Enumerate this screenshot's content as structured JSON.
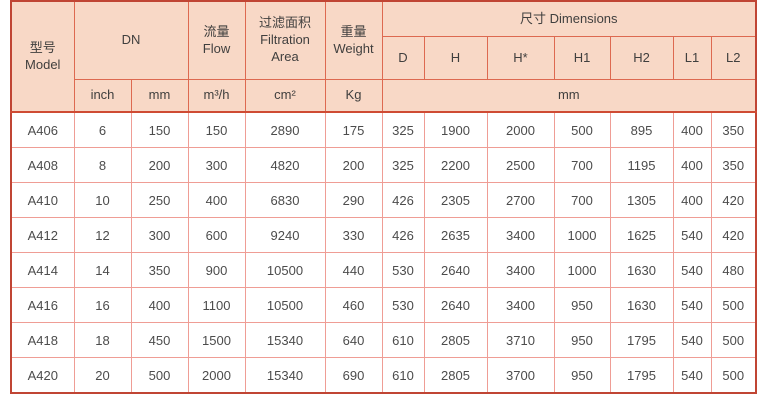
{
  "colors": {
    "header_bg": "#f8d8c6",
    "header_border": "#dd6950",
    "outer_border": "#c04534",
    "header_separator": "#cf4b33",
    "data_border": "#ef9d95",
    "header_text": "#403f3e",
    "data_text": "#4c4c4c",
    "page_bg": "#ffffff"
  },
  "table": {
    "header": {
      "model": {
        "zh": "型号",
        "en": "Model"
      },
      "dn": "DN",
      "flow": {
        "zh": "流量",
        "en": "Flow"
      },
      "filtration_area": {
        "zh": "过滤面积",
        "en_line1": "Filtration",
        "en_line2": "Area"
      },
      "weight": {
        "zh": "重量",
        "en": "Weight"
      },
      "dimensions": "尺寸 Dimensions",
      "dimension_columns": [
        "D",
        "H",
        "H*",
        "H1",
        "H2",
        "L1",
        "L2"
      ],
      "units": {
        "dn_inch": "inch",
        "dn_mm": "mm",
        "flow": "m³/h",
        "area": "cm²",
        "weight": "Kg",
        "dimensions": "mm"
      }
    },
    "rows": [
      [
        "A406",
        "6",
        "150",
        "150",
        "2890",
        "175",
        "325",
        "1900",
        "2000",
        "500",
        "895",
        "400",
        "350"
      ],
      [
        "A408",
        "8",
        "200",
        "300",
        "4820",
        "200",
        "325",
        "2200",
        "2500",
        "700",
        "1195",
        "400",
        "350"
      ],
      [
        "A410",
        "10",
        "250",
        "400",
        "6830",
        "290",
        "426",
        "2305",
        "2700",
        "700",
        "1305",
        "400",
        "420"
      ],
      [
        "A412",
        "12",
        "300",
        "600",
        "9240",
        "330",
        "426",
        "2635",
        "3400",
        "1000",
        "1625",
        "540",
        "420"
      ],
      [
        "A414",
        "14",
        "350",
        "900",
        "10500",
        "440",
        "530",
        "2640",
        "3400",
        "1000",
        "1630",
        "540",
        "480"
      ],
      [
        "A416",
        "16",
        "400",
        "1100",
        "10500",
        "460",
        "530",
        "2640",
        "3400",
        "950",
        "1630",
        "540",
        "500"
      ],
      [
        "A418",
        "18",
        "450",
        "1500",
        "15340",
        "640",
        "610",
        "2805",
        "3710",
        "950",
        "1795",
        "540",
        "500"
      ],
      [
        "A420",
        "20",
        "500",
        "2000",
        "15340",
        "690",
        "610",
        "2805",
        "3700",
        "950",
        "1795",
        "540",
        "500"
      ]
    ]
  },
  "chart_data": {
    "type": "table",
    "title": "尺寸 Dimensions",
    "columns": [
      "型号 Model",
      "DN inch",
      "DN mm",
      "流量 Flow m³/h",
      "过滤面积 Filtration Area cm²",
      "重量 Weight Kg",
      "D mm",
      "H mm",
      "H* mm",
      "H1 mm",
      "H2 mm",
      "L1 mm",
      "L2 mm"
    ],
    "rows": [
      [
        "A406",
        6,
        150,
        150,
        2890,
        175,
        325,
        1900,
        2000,
        500,
        895,
        400,
        350
      ],
      [
        "A408",
        8,
        200,
        300,
        4820,
        200,
        325,
        2200,
        2500,
        700,
        1195,
        400,
        350
      ],
      [
        "A410",
        10,
        250,
        400,
        6830,
        290,
        426,
        2305,
        2700,
        700,
        1305,
        400,
        420
      ],
      [
        "A412",
        12,
        300,
        600,
        9240,
        330,
        426,
        2635,
        3400,
        1000,
        1625,
        540,
        420
      ],
      [
        "A414",
        14,
        350,
        900,
        10500,
        440,
        530,
        2640,
        3400,
        1000,
        1630,
        540,
        480
      ],
      [
        "A416",
        16,
        400,
        1100,
        10500,
        460,
        530,
        2640,
        3400,
        950,
        1630,
        540,
        500
      ],
      [
        "A418",
        18,
        450,
        1500,
        15340,
        640,
        610,
        2805,
        3710,
        950,
        1795,
        540,
        500
      ],
      [
        "A420",
        20,
        500,
        2000,
        15340,
        690,
        610,
        2805,
        3700,
        950,
        1795,
        540,
        500
      ]
    ]
  }
}
